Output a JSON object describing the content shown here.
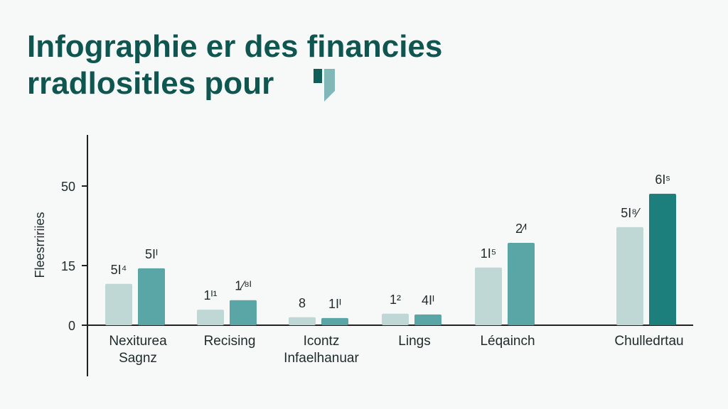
{
  "title": {
    "line1": "Infographie er des financies",
    "line2": "rradlositles pour"
  },
  "colors": {
    "title": "#0f5650",
    "light": "#bfd8d6",
    "mid": "#5aa5a5",
    "dark": "#1d7f7b",
    "axis": "#222222",
    "background": "#f7f8f8"
  },
  "chart_data": {
    "type": "bar",
    "title": "Infographie er des financies rradlositles pour",
    "ylabel": "Fleesrririies",
    "xlabel": "",
    "yticks": [
      0,
      15,
      50
    ],
    "ylim": [
      0,
      60
    ],
    "grid": false,
    "categories": [
      {
        "line1": "Nexiturea",
        "line2": "Sagnz"
      },
      {
        "line1": "Recising",
        "line2": ""
      },
      {
        "line1": "Icontz",
        "line2": "Infaelhanuar"
      },
      {
        "line1": "Lings",
        "line2": ""
      },
      {
        "line1": "Léqainch",
        "line2": ""
      },
      {
        "line1": "Chulledrtau",
        "line2": ""
      }
    ],
    "series": [
      {
        "values": [
          10.4,
          3.9,
          2.0,
          2.9,
          14.5,
          31.9
        ],
        "labels": [
          "5I⁴",
          "1ᴵ¹",
          "8",
          "1²",
          "1I⁵",
          "5I⁸⁄"
        ],
        "color": "#bfd8d6"
      },
      {
        "values": [
          14.3,
          6.3,
          1.8,
          2.7,
          25.0,
          46.6
        ],
        "labels": [
          "5Iᴵ",
          "1⁄⁸ᴵ",
          "1Iᴵ",
          "4Iᴵ",
          "2⁄ᴵ",
          "6Iˢ"
        ],
        "colors": [
          "#5aa5a5",
          "#5aa5a5",
          "#5aa5a5",
          "#5aa5a5",
          "#5aa5a5",
          "#1d7f7b"
        ]
      }
    ]
  }
}
